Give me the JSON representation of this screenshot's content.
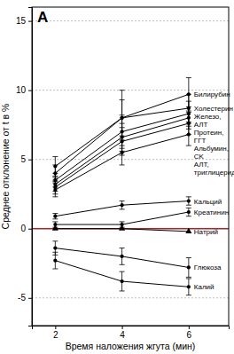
{
  "chart_data": {
    "type": "line",
    "title": "A",
    "x_label": "Время наложения жгута (мин)",
    "y_label": "Среднее отклонение от t в %",
    "x": [
      2,
      4,
      6
    ],
    "xlim": [
      1.3,
      7.2
    ],
    "xticks": [
      2,
      4,
      6
    ],
    "ylim": [
      -7,
      16
    ],
    "yticks": [
      -5,
      0,
      5,
      10,
      15
    ],
    "grid": true,
    "series": [
      {
        "name": "Билирубин",
        "color": "#000000",
        "marker": "circle",
        "values": [
          4.5,
          8.0,
          9.7
        ],
        "errors": [
          0.7,
          2.0,
          1.2
        ]
      },
      {
        "name": "Холестерин",
        "color": "#000000",
        "marker": "circle",
        "values": [
          4.0,
          8.0,
          8.7
        ],
        "errors": [
          0.6,
          1.3,
          1.0
        ]
      },
      {
        "name": "Железо, АЛТ",
        "color": "#000000",
        "marker": "circle",
        "values": [
          3.5,
          7.0,
          8.3
        ],
        "errors": [
          0.5,
          1.2,
          0.9
        ]
      },
      {
        "name": "Протеин, ГГТ",
        "color": "#000000",
        "marker": "circle",
        "values": [
          3.2,
          6.6,
          8.0
        ],
        "errors": [
          0.5,
          1.0,
          0.8
        ]
      },
      {
        "name": "Альбумин, CK",
        "color": "#000000",
        "marker": "circle",
        "values": [
          3.0,
          6.3,
          7.6
        ],
        "errors": [
          0.5,
          1.0,
          0.8
        ]
      },
      {
        "name": "АЛТ, триглицериды",
        "color": "#000000",
        "marker": "circle",
        "values": [
          2.8,
          5.5,
          6.8
        ],
        "errors": [
          0.5,
          0.9,
          0.8
        ]
      },
      {
        "name": "Кальций",
        "color": "#000000",
        "marker": "circle",
        "values": [
          0.9,
          1.7,
          2.0
        ],
        "errors": [
          0.2,
          0.3,
          0.3
        ]
      },
      {
        "name": "Креатинин",
        "color": "#000000",
        "marker": "circle",
        "values": [
          0.3,
          0.3,
          1.2
        ],
        "errors": [
          0.2,
          0.2,
          0.3
        ]
      },
      {
        "name": "Натрий",
        "color": "#000000",
        "marker": "triangle",
        "values": [
          0.0,
          0.0,
          -0.2
        ],
        "errors": [
          null,
          null,
          null
        ]
      },
      {
        "name": "Глюкоза",
        "color": "#000000",
        "marker": "circle",
        "values": [
          -1.4,
          -2.0,
          -2.8
        ],
        "errors": [
          0.5,
          0.6,
          0.7
        ]
      },
      {
        "name": "Калий",
        "color": "#000000",
        "marker": "circle",
        "values": [
          -2.3,
          -3.8,
          -4.2
        ],
        "errors": [
          0.6,
          0.7,
          0.6
        ]
      }
    ]
  }
}
